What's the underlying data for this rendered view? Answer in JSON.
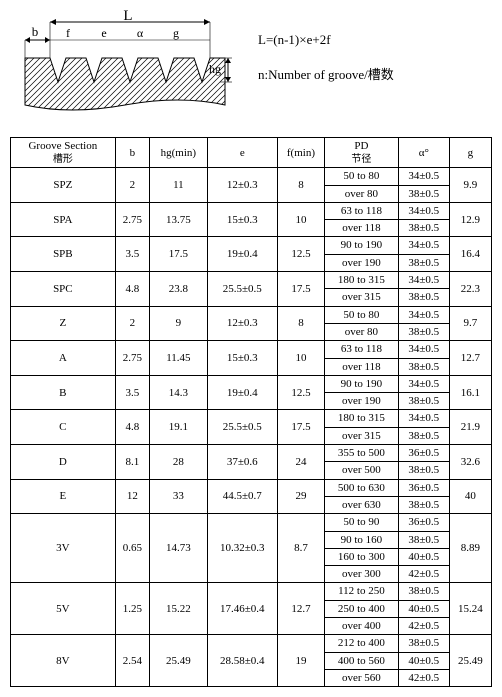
{
  "formula": {
    "line1": "L=(n-1)×e+2f",
    "line2": "n:Number of groove/槽数"
  },
  "diagram": {
    "labels": {
      "L": "L",
      "b": "b",
      "f": "f",
      "e": "e",
      "a": "α",
      "g": "g",
      "hg": "hg"
    },
    "stroke": "#000",
    "hatch": "#000"
  },
  "headers": {
    "groove": "Groove Section",
    "groove_sub": "槽形",
    "b": "b",
    "hg": "hg(min)",
    "e": "e",
    "f": "f(min)",
    "pd": "PD",
    "pd_sub": "节径",
    "alpha": "α°",
    "g": "g"
  },
  "rows": [
    {
      "section": "SPZ",
      "b": "2",
      "hg": "11",
      "e": "12±0.3",
      "f": "8",
      "pd": [
        "50 to 80",
        "over 80"
      ],
      "alpha": [
        "34±0.5",
        "38±0.5"
      ],
      "g": "9.9"
    },
    {
      "section": "SPA",
      "b": "2.75",
      "hg": "13.75",
      "e": "15±0.3",
      "f": "10",
      "pd": [
        "63 to 118",
        "over 118"
      ],
      "alpha": [
        "34±0.5",
        "38±0.5"
      ],
      "g": "12.9"
    },
    {
      "section": "SPB",
      "b": "3.5",
      "hg": "17.5",
      "e": "19±0.4",
      "f": "12.5",
      "pd": [
        "90 to 190",
        "over 190"
      ],
      "alpha": [
        "34±0.5",
        "38±0.5"
      ],
      "g": "16.4"
    },
    {
      "section": "SPC",
      "b": "4.8",
      "hg": "23.8",
      "e": "25.5±0.5",
      "f": "17.5",
      "pd": [
        "180 to 315",
        "over 315"
      ],
      "alpha": [
        "34±0.5",
        "38±0.5"
      ],
      "g": "22.3"
    },
    {
      "section": "Z",
      "b": "2",
      "hg": "9",
      "e": "12±0.3",
      "f": "8",
      "pd": [
        "50 to 80",
        "over 80"
      ],
      "alpha": [
        "34±0.5",
        "38±0.5"
      ],
      "g": "9.7"
    },
    {
      "section": "A",
      "b": "2.75",
      "hg": "11.45",
      "e": "15±0.3",
      "f": "10",
      "pd": [
        "63 to 118",
        "over 118"
      ],
      "alpha": [
        "34±0.5",
        "38±0.5"
      ],
      "g": "12.7"
    },
    {
      "section": "B",
      "b": "3.5",
      "hg": "14.3",
      "e": "19±0.4",
      "f": "12.5",
      "pd": [
        "90 to 190",
        "over 190"
      ],
      "alpha": [
        "34±0.5",
        "38±0.5"
      ],
      "g": "16.1"
    },
    {
      "section": "C",
      "b": "4.8",
      "hg": "19.1",
      "e": "25.5±0.5",
      "f": "17.5",
      "pd": [
        "180 to 315",
        "over 315"
      ],
      "alpha": [
        "34±0.5",
        "38±0.5"
      ],
      "g": "21.9"
    },
    {
      "section": "D",
      "b": "8.1",
      "hg": "28",
      "e": "37±0.6",
      "f": "24",
      "pd": [
        "355 to 500",
        "over 500"
      ],
      "alpha": [
        "36±0.5",
        "38±0.5"
      ],
      "g": "32.6"
    },
    {
      "section": "E",
      "b": "12",
      "hg": "33",
      "e": "44.5±0.7",
      "f": "29",
      "pd": [
        "500 to 630",
        "over 630"
      ],
      "alpha": [
        "36±0.5",
        "38±0.5"
      ],
      "g": "40"
    },
    {
      "section": "3V",
      "b": "0.65",
      "hg": "14.73",
      "e": "10.32±0.3",
      "f": "8.7",
      "pd": [
        "50 to 90",
        "90 to 160",
        "160 to 300",
        "over 300"
      ],
      "alpha": [
        "36±0.5",
        "38±0.5",
        "40±0.5",
        "42±0.5"
      ],
      "g": "8.89"
    },
    {
      "section": "5V",
      "b": "1.25",
      "hg": "15.22",
      "e": "17.46±0.4",
      "f": "12.7",
      "pd": [
        "112 to 250",
        "250 to 400",
        "over 400"
      ],
      "alpha": [
        "38±0.5",
        "40±0.5",
        "42±0.5"
      ],
      "g": "15.24"
    },
    {
      "section": "8V",
      "b": "2.54",
      "hg": "25.49",
      "e": "28.58±0.4",
      "f": "19",
      "pd": [
        "212 to 400",
        "400 to 560",
        "over 560"
      ],
      "alpha": [
        "38±0.5",
        "40±0.5",
        "42±0.5"
      ],
      "g": "25.49"
    }
  ]
}
